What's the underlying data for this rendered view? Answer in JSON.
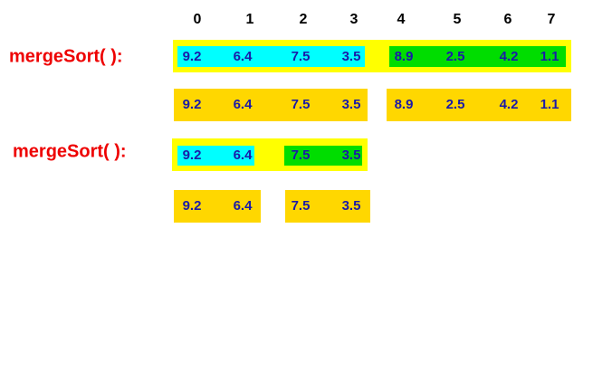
{
  "indices": [
    "0",
    "1",
    "2",
    "3",
    "4",
    "5",
    "6",
    "7"
  ],
  "steps": [
    {
      "label": "mergeSort( ):",
      "left": [
        "9.2",
        "6.4",
        "7.5",
        "3.5"
      ],
      "right": [
        "8.9",
        "2.5",
        "4.2",
        "1.1"
      ]
    },
    {
      "left": [
        "9.2",
        "6.4",
        "7.5",
        "3.5"
      ],
      "right": [
        "8.9",
        "2.5",
        "4.2",
        "1.1"
      ]
    },
    {
      "label": "mergeSort( ):",
      "left": [
        "9.2",
        "6.4"
      ],
      "right": [
        "7.5",
        "3.5"
      ]
    },
    {
      "left": [
        "9.2",
        "6.4"
      ],
      "right": [
        "7.5",
        "3.5"
      ]
    }
  ]
}
